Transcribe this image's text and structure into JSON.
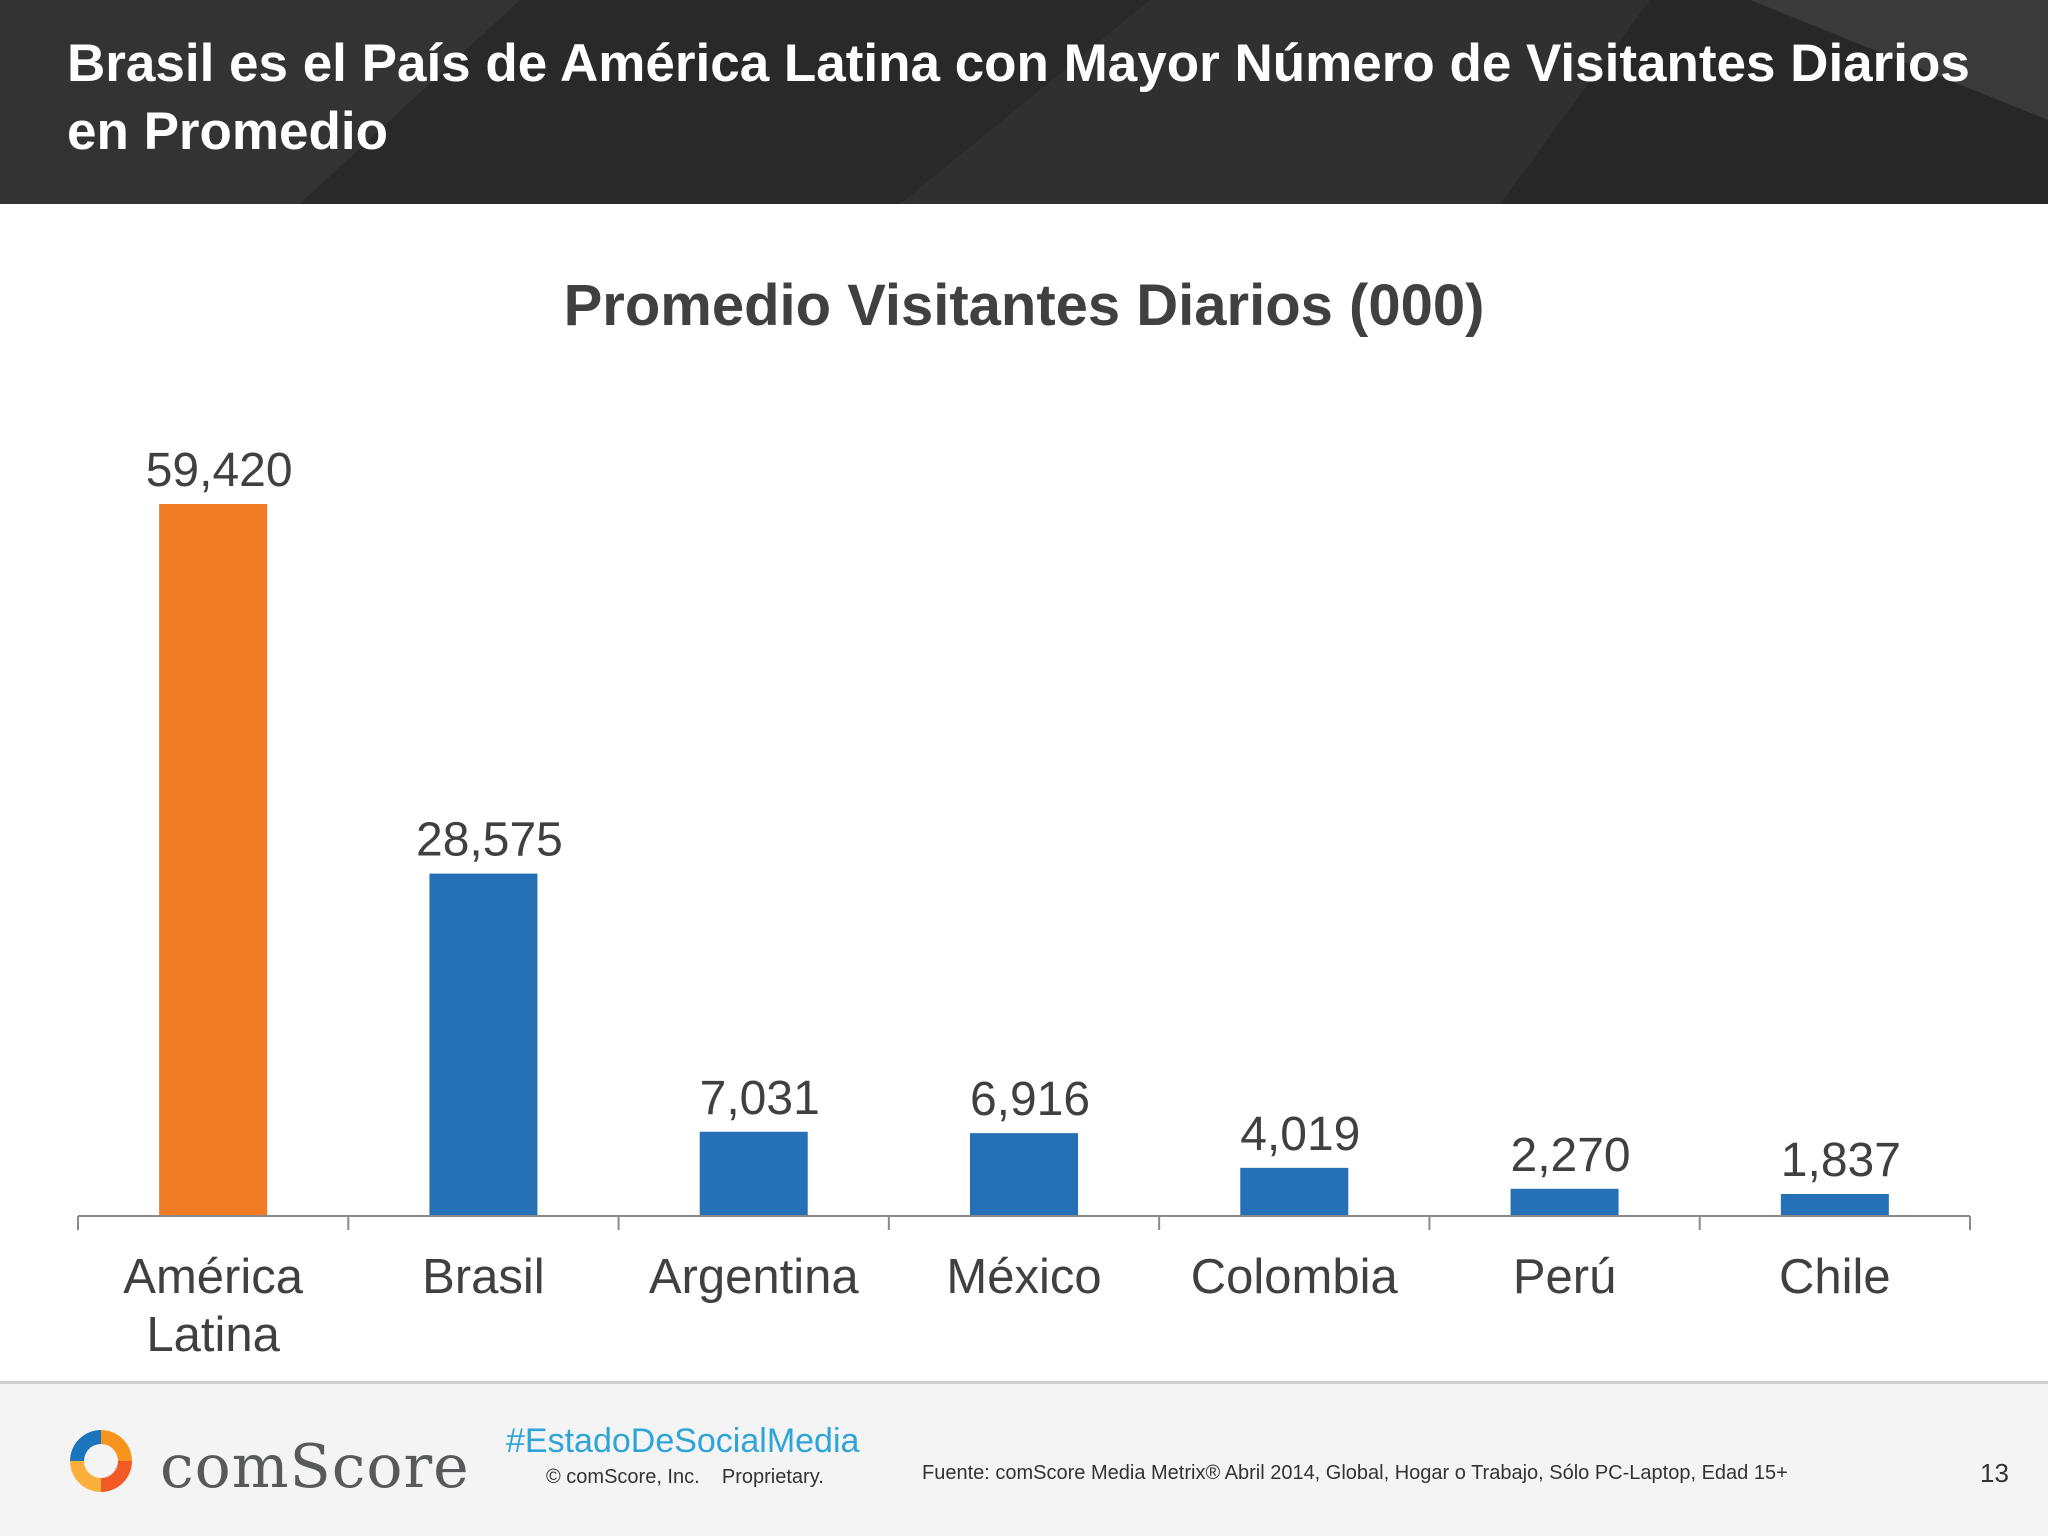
{
  "header": {
    "title": "Brasil es el País de América Latina con Mayor Número de Visitantes Diarios en Promedio"
  },
  "chart_data": {
    "type": "bar",
    "title": "Promedio Visitantes Diarios (000)",
    "categories": [
      "América Latina",
      "Brasil",
      "Argentina",
      "México",
      "Colombia",
      "Perú",
      "Chile"
    ],
    "values": [
      59420,
      28575,
      7031,
      6916,
      4019,
      2270,
      1837
    ],
    "value_labels": [
      "59,420",
      "28,575",
      "7,031",
      "6,916",
      "4,019",
      "2,270",
      "1,837"
    ],
    "ylim": [
      0,
      59420
    ],
    "colors": [
      "#f07b24",
      "#2670b8",
      "#2670b8",
      "#2670b8",
      "#2670b8",
      "#2670b8",
      "#2670b8"
    ],
    "grid": false,
    "legend": "none"
  },
  "footer": {
    "brand": "comScore",
    "hashtag": "#EstadoDeSocialMedia",
    "copyright": "© comScore, Inc.    Proprietary.",
    "source": "Fuente: comScore Media Metrix® Abril 2014, Global, Hogar o Trabajo, Sólo PC-Laptop, Edad 15+",
    "page_number": "13"
  }
}
